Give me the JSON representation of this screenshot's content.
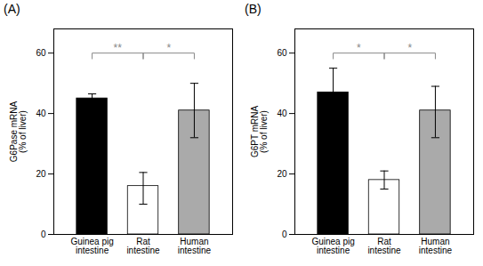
{
  "chart_data": [
    {
      "type": "bar",
      "title": "(A)",
      "categories": [
        "Guinea pig\nintestine",
        "Rat\nintestine",
        "Human\nintestine"
      ],
      "values": [
        45.0,
        16.0,
        41.0
      ],
      "errors_up": [
        1.5,
        4.5,
        9.0
      ],
      "errors_down": [
        1.5,
        6.0,
        9.0
      ],
      "colors": [
        "#000000",
        "#ffffff",
        "#aaaaaa"
      ],
      "ylabel": "G6Pase mRNA\n(% of liver)",
      "ylim": [
        0,
        68
      ],
      "yticks": [
        0,
        20,
        40,
        60
      ],
      "grid": false,
      "annotations": [
        {
          "text": "**",
          "x": [
            "Guinea pig\nintestine",
            "Rat\nintestine"
          ],
          "y": 60,
          "color": "#888888"
        },
        {
          "text": "*",
          "x": [
            "Rat\nintestine",
            "Human\nintestine"
          ],
          "y": 60,
          "color": "#888888"
        }
      ]
    },
    {
      "type": "bar",
      "title": "(B)",
      "categories": [
        "Guinea pig\nintestine",
        "Rat\nintestine",
        "Human\nintestine"
      ],
      "values": [
        47.0,
        18.0,
        41.0
      ],
      "errors_up": [
        8.0,
        3.0,
        8.0
      ],
      "errors_down": [
        8.0,
        3.0,
        9.0
      ],
      "colors": [
        "#000000",
        "#ffffff",
        "#aaaaaa"
      ],
      "ylabel": "G6PT mRNA\n(% of liver)",
      "ylim": [
        0,
        68
      ],
      "yticks": [
        0,
        20,
        40,
        60
      ],
      "grid": false,
      "annotations": [
        {
          "text": "*",
          "x": [
            "Guinea pig\nintestine",
            "Rat\nintestine"
          ],
          "y": 60,
          "color": "#888888"
        },
        {
          "text": "*",
          "x": [
            "Rat\nintestine",
            "Human\nintestine"
          ],
          "y": 60,
          "color": "#888888"
        }
      ]
    }
  ]
}
